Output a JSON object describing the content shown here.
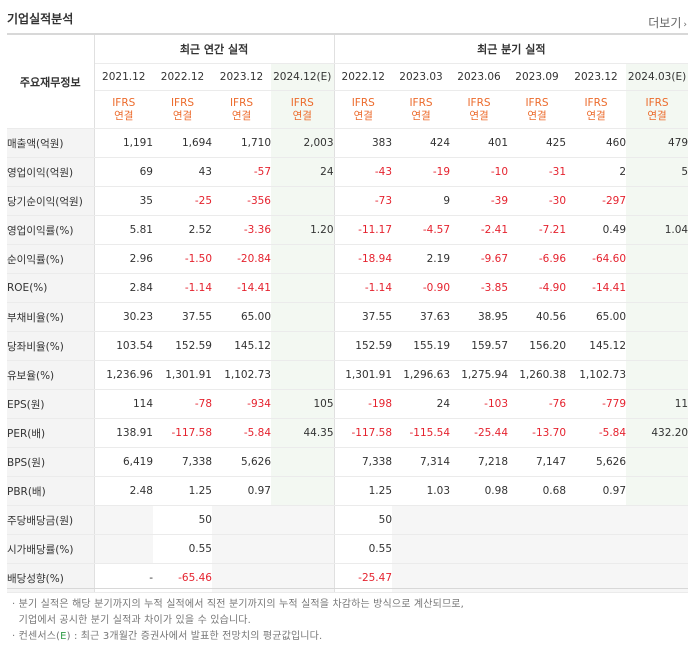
{
  "header": {
    "title": "기업실적분석",
    "more": "더보기"
  },
  "table": {
    "corner_label": "주요재무정보",
    "group_annual": "최근 연간 실적",
    "group_quarter": "최근 분기 실적",
    "periods": [
      "2021.12",
      "2022.12",
      "2023.12",
      "2024.12(E)",
      "2022.12",
      "2023.03",
      "2023.06",
      "2023.09",
      "2023.12",
      "2024.03(E)"
    ],
    "basis_line1": "IFRS",
    "basis_line2": "연결",
    "rows": [
      {
        "label": "매출액(억원)",
        "values": [
          "1,191",
          "1,694",
          "1,710",
          "2,003",
          "383",
          "424",
          "401",
          "425",
          "460",
          "479"
        ]
      },
      {
        "label": "영업이익(억원)",
        "values": [
          "69",
          "43",
          "-57",
          "24",
          "-43",
          "-19",
          "-10",
          "-31",
          "2",
          "5"
        ]
      },
      {
        "label": "당기순이익(억원)",
        "values": [
          "35",
          "-25",
          "-356",
          "",
          "-73",
          "9",
          "-39",
          "-30",
          "-297",
          ""
        ]
      },
      {
        "label": "영업이익률(%)",
        "values": [
          "5.81",
          "2.52",
          "-3.36",
          "1.20",
          "-11.17",
          "-4.57",
          "-2.41",
          "-7.21",
          "0.49",
          "1.04"
        ]
      },
      {
        "label": "순이익률(%)",
        "values": [
          "2.96",
          "-1.50",
          "-20.84",
          "",
          "-18.94",
          "2.19",
          "-9.67",
          "-6.96",
          "-64.60",
          ""
        ]
      },
      {
        "label": "ROE(%)",
        "values": [
          "2.84",
          "-1.14",
          "-14.41",
          "",
          "-1.14",
          "-0.90",
          "-3.85",
          "-4.90",
          "-14.41",
          ""
        ]
      },
      {
        "label": "부채비율(%)",
        "values": [
          "30.23",
          "37.55",
          "65.00",
          "",
          "37.55",
          "37.63",
          "38.95",
          "40.56",
          "65.00",
          ""
        ]
      },
      {
        "label": "당좌비율(%)",
        "values": [
          "103.54",
          "152.59",
          "145.12",
          "",
          "152.59",
          "155.19",
          "159.57",
          "156.20",
          "145.12",
          ""
        ]
      },
      {
        "label": "유보율(%)",
        "values": [
          "1,236.96",
          "1,301.91",
          "1,102.73",
          "",
          "1,301.91",
          "1,296.63",
          "1,275.94",
          "1,260.38",
          "1,102.73",
          ""
        ]
      },
      {
        "label": "EPS(원)",
        "values": [
          "114",
          "-78",
          "-934",
          "105",
          "-198",
          "24",
          "-103",
          "-76",
          "-779",
          "11"
        ]
      },
      {
        "label": "PER(배)",
        "values": [
          "138.91",
          "-117.58",
          "-5.84",
          "44.35",
          "-117.58",
          "-115.54",
          "-25.44",
          "-13.70",
          "-5.84",
          "432.20"
        ]
      },
      {
        "label": "BPS(원)",
        "values": [
          "6,419",
          "7,338",
          "5,626",
          "",
          "7,338",
          "7,314",
          "7,218",
          "7,147",
          "5,626",
          ""
        ]
      },
      {
        "label": "PBR(배)",
        "values": [
          "2.48",
          "1.25",
          "0.97",
          "",
          "1.25",
          "1.03",
          "0.98",
          "0.68",
          "0.97",
          ""
        ]
      },
      {
        "label": "주당배당금(원)",
        "values": [
          "",
          "50",
          "",
          "",
          "50",
          "",
          "",
          "",
          "",
          ""
        ]
      },
      {
        "label": "시가배당률(%)",
        "values": [
          "",
          "0.55",
          "",
          "",
          "0.55",
          "",
          "",
          "",
          "",
          ""
        ]
      },
      {
        "label": "배당성향(%)",
        "values": [
          "-",
          "-65.46",
          "",
          "",
          "-25.47",
          "",
          "",
          "",
          "",
          ""
        ]
      }
    ]
  },
  "notes": {
    "line1": "· 분기 실적은 해당 분기까지의 누적 실적에서 직전 분기까지의 누적 실적을 차감하는 방식으로 계산되므로,",
    "line2": "  기업에서 공시한 분기 실적과 차이가 있을 수 있습니다.",
    "line3_prefix": "· 컨센서스(",
    "line3_e": "E",
    "line3_suffix": ") : 최근 3개월간 증권사에서 발표한 전망치의 평균값입니다."
  },
  "colors": {
    "negative": "#e5232f",
    "basis": "#ec6b2c",
    "estimate": "#2e9b45",
    "estimate_bg": "#f3f8f2"
  }
}
